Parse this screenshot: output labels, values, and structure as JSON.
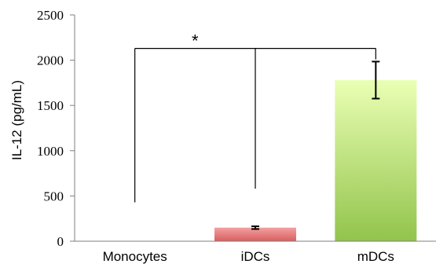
{
  "chart_data": {
    "type": "bar",
    "title": "",
    "xlabel": "",
    "ylabel": "IL-12 (pg/mL)",
    "ylim": [
      0,
      2500
    ],
    "yticks": [
      0,
      500,
      1000,
      1500,
      2000,
      2500
    ],
    "categories": [
      "Monocytes",
      "iDCs",
      "mDCs"
    ],
    "values": [
      0,
      150,
      1780
    ],
    "error": [
      0,
      15,
      205
    ],
    "grid": false,
    "legend": "none",
    "significance": {
      "label": "*",
      "from": "mDCs",
      "to": [
        "Monocytes",
        "iDCs"
      ],
      "bracket_y": 2130,
      "drop_to": [
        430,
        580
      ]
    },
    "colors": {
      "iDCs": {
        "top": "#f4a0a0",
        "bottom": "#d85f5f"
      },
      "mDCs": {
        "top": "#eaffb4",
        "bottom": "#92c44c"
      }
    }
  }
}
